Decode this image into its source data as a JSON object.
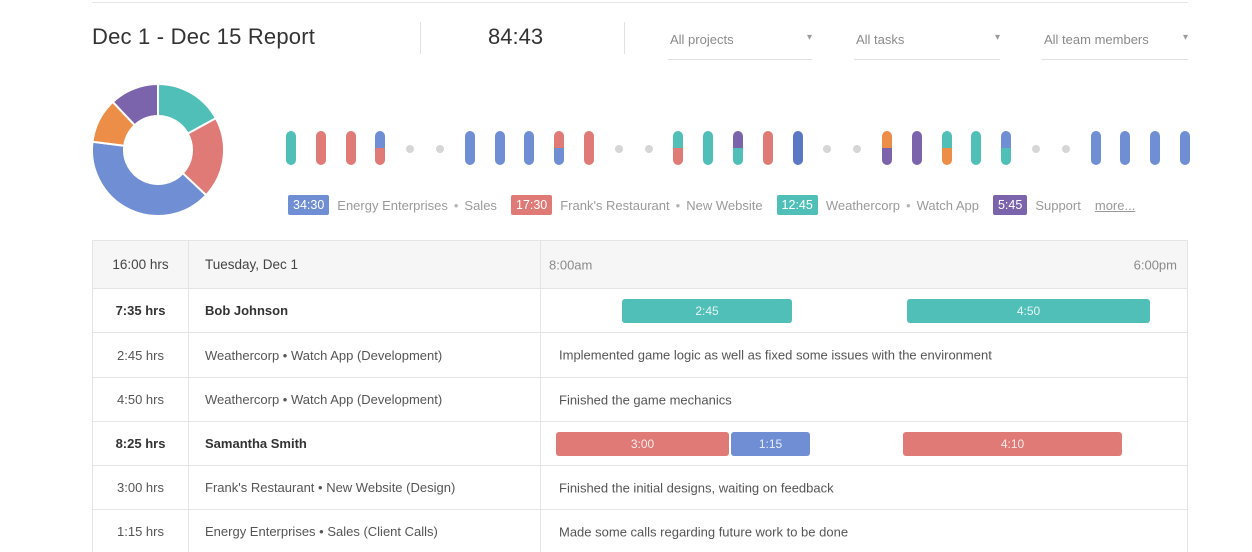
{
  "header": {
    "title": "Dec 1  -  Dec 15 Report",
    "total": "84:43",
    "filters": [
      {
        "label": "All projects"
      },
      {
        "label": "All tasks"
      },
      {
        "label": "All team members"
      }
    ]
  },
  "colors": {
    "blue": "#6f8ed3",
    "red": "#e07a76",
    "teal": "#4fbfb8",
    "purple": "#7c64ad",
    "orange": "#ec8e47",
    "darkblue": "#5b78c4",
    "dot": "#d6d6d6"
  },
  "donut": {
    "segments": [
      {
        "color": "#4fbfb8",
        "fraction": 0.17
      },
      {
        "color": "#e07a76",
        "fraction": 0.2
      },
      {
        "color": "#6f8ed3",
        "fraction": 0.4
      },
      {
        "color": "#ec8e47",
        "fraction": 0.11
      },
      {
        "color": "#7c64ad",
        "fraction": 0.12
      }
    ]
  },
  "strip": [
    [
      {
        "c": "teal",
        "f": 1
      }
    ],
    [
      {
        "c": "red",
        "f": 1
      }
    ],
    [
      {
        "c": "red",
        "f": 1
      }
    ],
    [
      {
        "c": "blue",
        "f": 0.5
      },
      {
        "c": "red",
        "f": 0.5
      }
    ],
    "dot",
    "dot",
    [
      {
        "c": "blue",
        "f": 1
      }
    ],
    [
      {
        "c": "blue",
        "f": 1
      }
    ],
    [
      {
        "c": "blue",
        "f": 1
      }
    ],
    [
      {
        "c": "red",
        "f": 0.5
      },
      {
        "c": "blue",
        "f": 0.5
      }
    ],
    [
      {
        "c": "red",
        "f": 1
      }
    ],
    "dot",
    "dot",
    [
      {
        "c": "teal",
        "f": 0.5
      },
      {
        "c": "red",
        "f": 0.5
      }
    ],
    [
      {
        "c": "teal",
        "f": 1
      }
    ],
    [
      {
        "c": "purple",
        "f": 0.5
      },
      {
        "c": "teal",
        "f": 0.5
      }
    ],
    [
      {
        "c": "red",
        "f": 1
      }
    ],
    [
      {
        "c": "darkblue",
        "f": 1
      }
    ],
    "dot",
    "dot",
    [
      {
        "c": "orange",
        "f": 0.5
      },
      {
        "c": "purple",
        "f": 0.5
      }
    ],
    [
      {
        "c": "purple",
        "f": 1
      }
    ],
    [
      {
        "c": "teal",
        "f": 0.5
      },
      {
        "c": "orange",
        "f": 0.5
      }
    ],
    [
      {
        "c": "teal",
        "f": 1
      }
    ],
    [
      {
        "c": "blue",
        "f": 0.5
      },
      {
        "c": "teal",
        "f": 0.5
      }
    ],
    "dot",
    "dot",
    [
      {
        "c": "blue",
        "f": 1
      }
    ],
    [
      {
        "c": "blue",
        "f": 1
      }
    ],
    [
      {
        "c": "blue",
        "f": 1
      }
    ],
    [
      {
        "c": "blue",
        "f": 1
      }
    ]
  ],
  "legend": [
    {
      "time": "34:30",
      "color": "#6f8ed3",
      "client": "Energy Enterprises",
      "project": "Sales"
    },
    {
      "time": "17:30",
      "color": "#e07a76",
      "client": "Frank's Restaurant",
      "project": "New Website"
    },
    {
      "time": "12:45",
      "color": "#4fbfb8",
      "client": "Weathercorp",
      "project": "Watch App"
    },
    {
      "time": "5:45",
      "color": "#7c64ad",
      "client": "Support",
      "project": ""
    }
  ],
  "legend_more": "more...",
  "table": {
    "head": {
      "hours": "16:00 hrs",
      "day": "Tuesday, Dec 1",
      "start": "8:00am",
      "end": "6:00pm"
    },
    "rows": [
      {
        "type": "person",
        "hours": "7:35 hrs",
        "name": "Bob Johnson",
        "bars": [
          {
            "label": "2:45",
            "color": "#4fbfb8",
            "start": 0.126,
            "end": 0.389
          },
          {
            "label": "4:50",
            "color": "#4fbfb8",
            "start": 0.567,
            "end": 0.943
          }
        ]
      },
      {
        "type": "entry",
        "hours": "2:45 hrs",
        "project": "Weathercorp  •  Watch App (Development)",
        "desc": "Implemented game logic as well as fixed some issues with the environment"
      },
      {
        "type": "entry",
        "hours": "4:50 hrs",
        "project": "Weathercorp  •  Watch App (Development)",
        "desc": "Finished the game mechanics"
      },
      {
        "type": "person",
        "hours": "8:25 hrs",
        "name": "Samantha Smith",
        "bars": [
          {
            "label": "3:00",
            "color": "#e07a76",
            "start": 0.023,
            "end": 0.291
          },
          {
            "label": "1:15",
            "color": "#6f8ed3",
            "start": 0.294,
            "end": 0.417
          },
          {
            "label": "4:10",
            "color": "#e07a76",
            "start": 0.561,
            "end": 0.9
          }
        ]
      },
      {
        "type": "entry",
        "hours": "3:00 hrs",
        "project": "Frank's Restaurant  •  New Website (Design)",
        "desc": "Finished the initial designs, waiting on feedback"
      },
      {
        "type": "entry",
        "hours": "1:15 hrs",
        "project": "Energy Enterprises  •  Sales (Client Calls)",
        "desc": "Made some calls regarding future work to be done"
      }
    ]
  }
}
